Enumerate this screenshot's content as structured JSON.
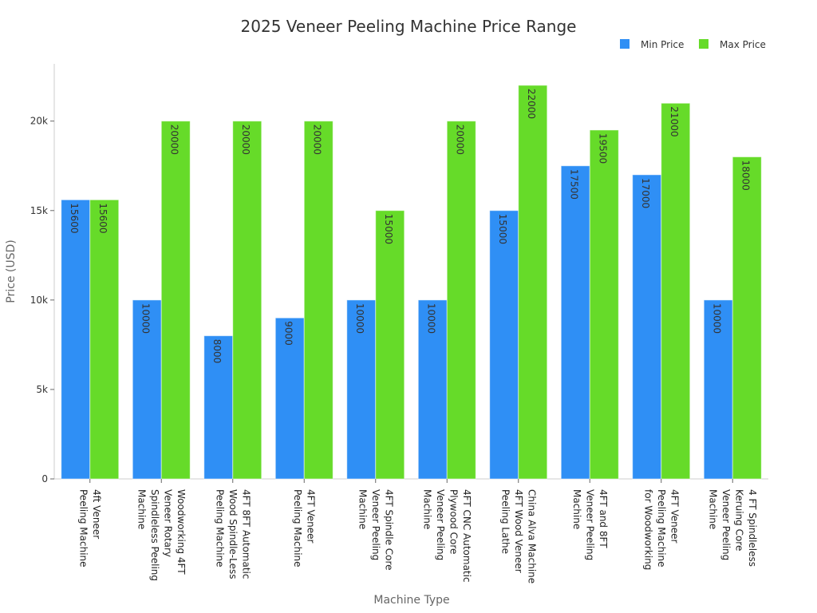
{
  "chart_data": {
    "type": "bar",
    "title": "2025 Veneer Peeling Machine Price Range",
    "xlabel": "Machine Type",
    "ylabel": "Price (USD)",
    "ylim": [
      0,
      23200
    ],
    "yticks": [
      0,
      5000,
      10000,
      15000,
      20000
    ],
    "ytick_labels": [
      "0",
      "5k",
      "10k",
      "15k",
      "20k"
    ],
    "legend_position": "top-right",
    "categories": [
      "4ft Veneer\nPeeling Machine",
      "Woodworking 4FT\nVeneer Rotary\nSpindleless Peeling\nMachine",
      "4FT 8FT Automatic\nWood Spindle-Less\nPeeling Machine",
      "4FT Veneer\nPeeling Machine",
      "4FT Spindle Core\nVeneer Peeling\nMachine",
      "4FT CNC Automatic\nPlywood Core\nVeneer Peeling\nMachine",
      "China Alva Machine\n4FT Wood Veneer\nPeeling Lathe",
      "4FT and 8FT\nVeneer Peeling\nMachine",
      "4FT Veneer\nPeeling Machine\nfor Woodworking",
      "4 FT Spindleless\nKeruing Core\nVeneer Peeling\nMachine"
    ],
    "series": [
      {
        "name": "Min Price",
        "color": "#2f8ff5",
        "values": [
          15600,
          10000,
          8000,
          9000,
          10000,
          10000,
          15000,
          17500,
          17000,
          10000
        ]
      },
      {
        "name": "Max Price",
        "color": "#66db29",
        "values": [
          15600,
          20000,
          20000,
          20000,
          15000,
          20000,
          22000,
          19500,
          21000,
          18000
        ]
      }
    ]
  }
}
